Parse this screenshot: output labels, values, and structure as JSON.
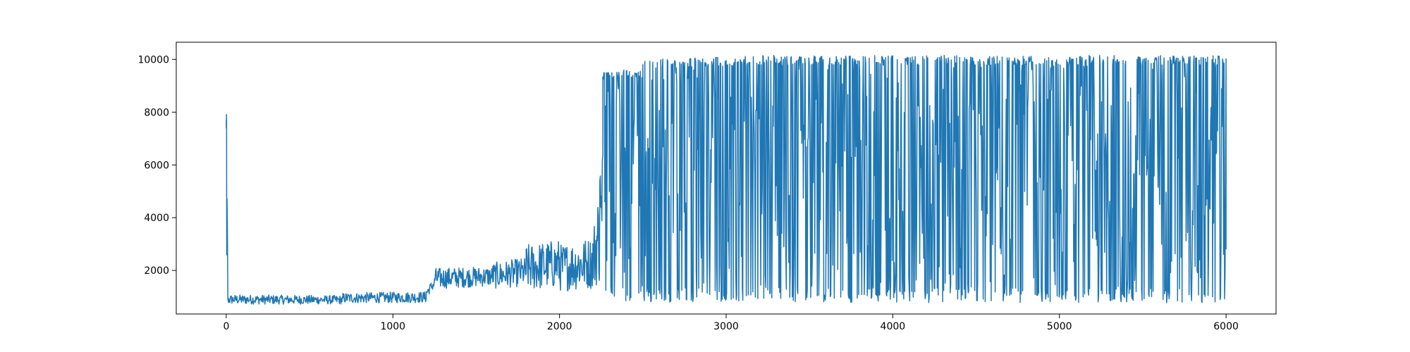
{
  "chart_data": {
    "type": "line",
    "title": "",
    "xlabel": "",
    "ylabel": "",
    "xlim": [
      -300,
      6300
    ],
    "ylim": [
      350,
      10650
    ],
    "xticks": [
      0,
      1000,
      2000,
      3000,
      4000,
      5000,
      6000
    ],
    "yticks": [
      2000,
      4000,
      6000,
      8000,
      10000
    ],
    "xtick_labels": [
      "0",
      "1000",
      "2000",
      "3000",
      "4000",
      "5000",
      "6000"
    ],
    "ytick_labels": [
      "2000",
      "4000",
      "6000",
      "8000",
      "10000"
    ],
    "grid": false,
    "legend": "none",
    "colors": {
      "line": "#1f77b4",
      "axes": "#000000",
      "background": "#ffffff"
    },
    "series": [
      {
        "name": "",
        "x_start": 0,
        "x_end": 6000,
        "segments": [
          {
            "x": [
              0,
              2
            ],
            "low": [
              7200,
              7000
            ],
            "high": [
              7950,
              7900
            ]
          },
          {
            "x": [
              3,
              10
            ],
            "low": [
              1500,
              780
            ],
            "high": [
              7800,
              1100
            ]
          },
          {
            "x": [
              10,
              700
            ],
            "low": [
              720,
              720
            ],
            "high": [
              1080,
              1050
            ]
          },
          {
            "x": [
              700,
              1200
            ],
            "low": [
              760,
              780
            ],
            "high": [
              1150,
              1200
            ]
          },
          {
            "x": [
              1200,
              1250
            ],
            "low": [
              1000,
              1300
            ],
            "high": [
              1300,
              1750
            ]
          },
          {
            "x": [
              1250,
              1600
            ],
            "low": [
              1300,
              1400
            ],
            "high": [
              2100,
              2150
            ]
          },
          {
            "x": [
              1600,
              1800
            ],
            "low": [
              1300,
              1400
            ],
            "high": [
              2300,
              2500
            ]
          },
          {
            "x": [
              1800,
              2000
            ],
            "low": [
              1200,
              1300
            ],
            "high": [
              3000,
              3200
            ]
          },
          {
            "x": [
              2000,
              2200
            ],
            "low": [
              1200,
              1300
            ],
            "high": [
              3000,
              3300
            ]
          },
          {
            "x": [
              2200,
              2260
            ],
            "low": [
              1300,
              1500
            ],
            "high": [
              3500,
              6400
            ]
          },
          {
            "x": [
              2260,
              2500
            ],
            "low": [
              900,
              800
            ],
            "high": [
              9500,
              9700
            ]
          },
          {
            "x": [
              2500,
              3000
            ],
            "low": [
              800,
              800
            ],
            "high": [
              10000,
              10100
            ]
          },
          {
            "x": [
              3000,
              3100
            ],
            "low": [
              800,
              800
            ],
            "high": [
              10100,
              10150
            ]
          },
          {
            "x": [
              3100,
              6000
            ],
            "low": [
              800,
              750
            ],
            "high": [
              10150,
              10150
            ]
          }
        ],
        "endpoint": {
          "x": 6000,
          "y": 2800
        }
      }
    ]
  }
}
